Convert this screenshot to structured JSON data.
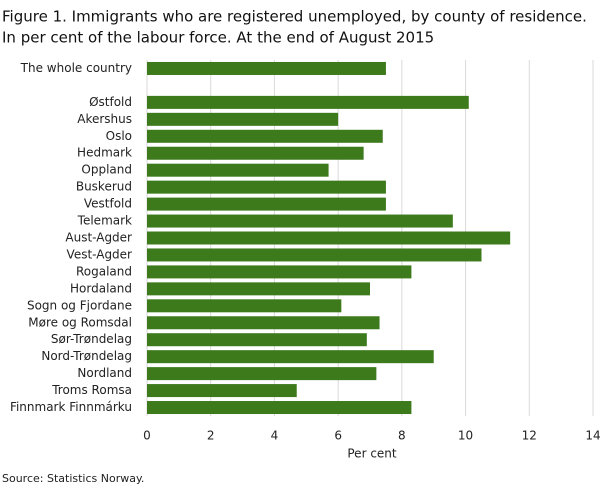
{
  "chart_data": {
    "type": "hbar",
    "title": "Figure 1. Immigrants who are registered unemployed, by county of residence.",
    "subtitle": "In per cent of the labour force. At the end of August 2015",
    "categories": [
      "The whole country",
      null,
      "Østfold",
      "Akershus",
      "Oslo",
      "Hedmark",
      "Oppland",
      "Buskerud",
      "Vestfold",
      "Telemark",
      "Aust-Agder",
      "Vest-Agder",
      "Rogaland",
      "Hordaland",
      "Sogn og Fjordane",
      "Møre og Romsdal",
      "Sør-Trøndelag",
      "Nord-Trøndelag",
      "Nordland",
      "Troms Romsa",
      "Finnmark Finnmárku"
    ],
    "values": [
      7.5,
      null,
      10.1,
      6.0,
      7.4,
      6.8,
      5.7,
      7.5,
      7.5,
      9.6,
      11.4,
      10.5,
      8.3,
      7.0,
      6.1,
      7.3,
      6.9,
      9.0,
      7.2,
      4.7,
      8.3
    ],
    "color": "#3d7a1b",
    "xlim": [
      0,
      14
    ],
    "xticks": [
      0,
      2,
      4,
      6,
      8,
      10,
      12,
      14
    ],
    "xlabel": "Per cent",
    "grid": true,
    "source": "Source: Statistics Norway."
  }
}
